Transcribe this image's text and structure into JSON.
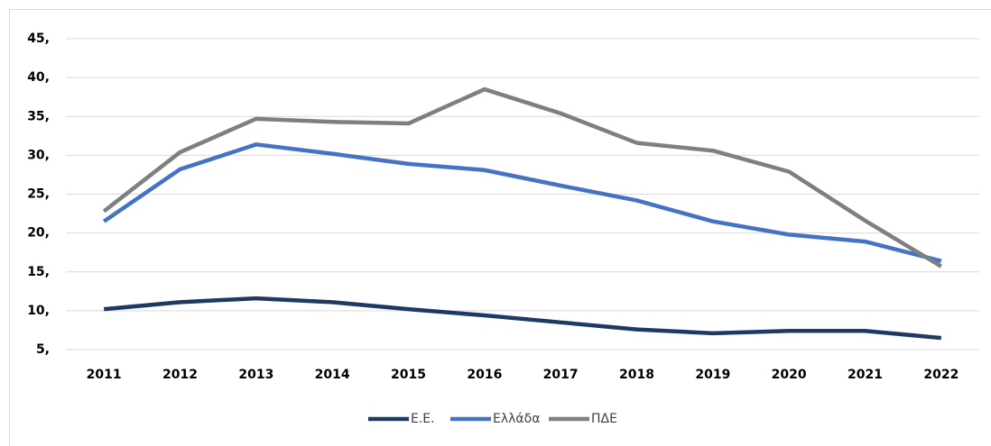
{
  "chart_data": {
    "type": "line",
    "categories": [
      "2011",
      "2012",
      "2013",
      "2014",
      "2015",
      "2016",
      "2017",
      "2018",
      "2019",
      "2020",
      "2021",
      "2022"
    ],
    "series": [
      {
        "name": "Ε.Ε.",
        "color": "#203864",
        "values": [
          10.2,
          11.1,
          11.6,
          11.1,
          10.2,
          9.4,
          8.5,
          7.6,
          7.1,
          7.4,
          7.4,
          6.5
        ]
      },
      {
        "name": "Ελλάδα",
        "color": "#4472c4",
        "values": [
          21.5,
          28.2,
          31.4,
          30.2,
          28.9,
          28.1,
          26.1,
          24.2,
          21.5,
          19.8,
          18.9,
          16.4
        ]
      },
      {
        "name": "ΠΔΕ",
        "color": "#7f7f7f",
        "values": [
          22.8,
          30.4,
          34.7,
          34.3,
          34.1,
          38.5,
          35.4,
          31.6,
          30.6,
          27.9,
          21.6,
          15.7
        ]
      }
    ],
    "ylim": [
      5,
      45
    ],
    "yticks": [
      {
        "value": 5,
        "label": "5,"
      },
      {
        "value": 10,
        "label": "10,"
      },
      {
        "value": 15,
        "label": "15,"
      },
      {
        "value": 20,
        "label": "20,"
      },
      {
        "value": 25,
        "label": "25,"
      },
      {
        "value": 30,
        "label": "30,"
      },
      {
        "value": 35,
        "label": "35,"
      },
      {
        "value": 40,
        "label": "40,"
      },
      {
        "value": 45,
        "label": "45,"
      }
    ],
    "grid": true,
    "legend": "bottom"
  }
}
